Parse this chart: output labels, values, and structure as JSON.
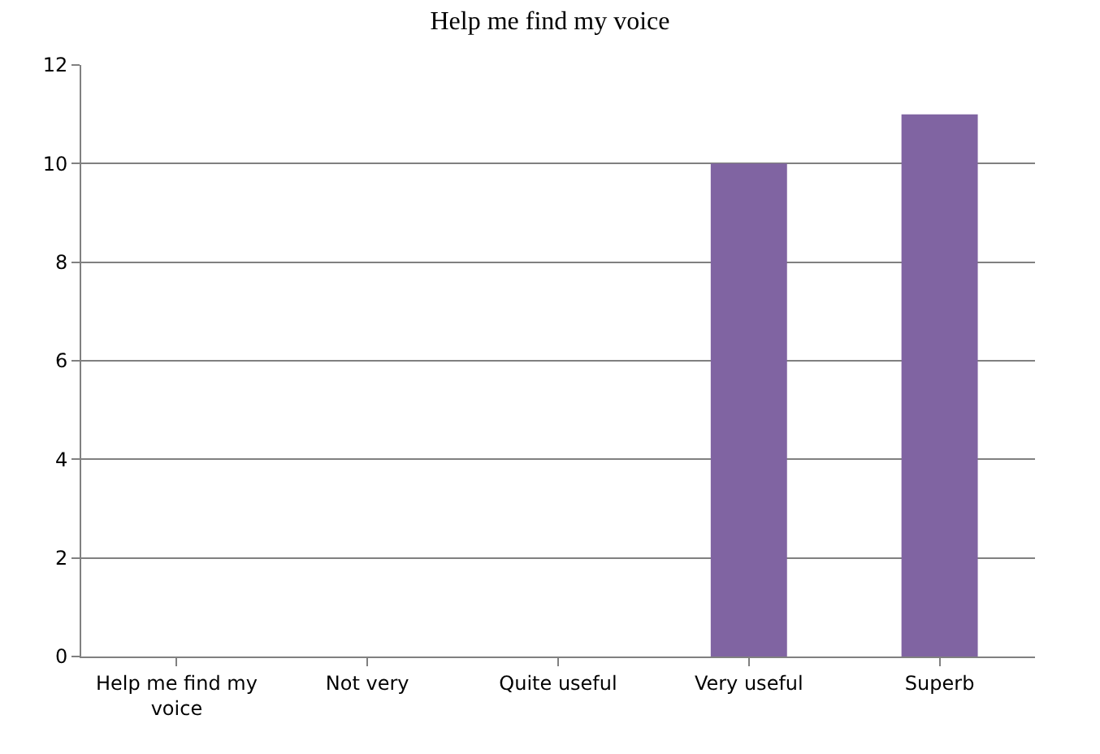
{
  "chart_data": {
    "type": "bar",
    "title": "Help me find my voice",
    "categories": [
      "Help me find my voice",
      "Not very",
      "Quite useful",
      "Very useful",
      "Superb"
    ],
    "values": [
      null,
      0,
      0,
      10,
      11
    ],
    "color": "#8064a2",
    "ylim": [
      0,
      12
    ],
    "yticks": [
      0,
      2,
      4,
      6,
      8,
      10,
      12
    ],
    "grid": "y"
  }
}
